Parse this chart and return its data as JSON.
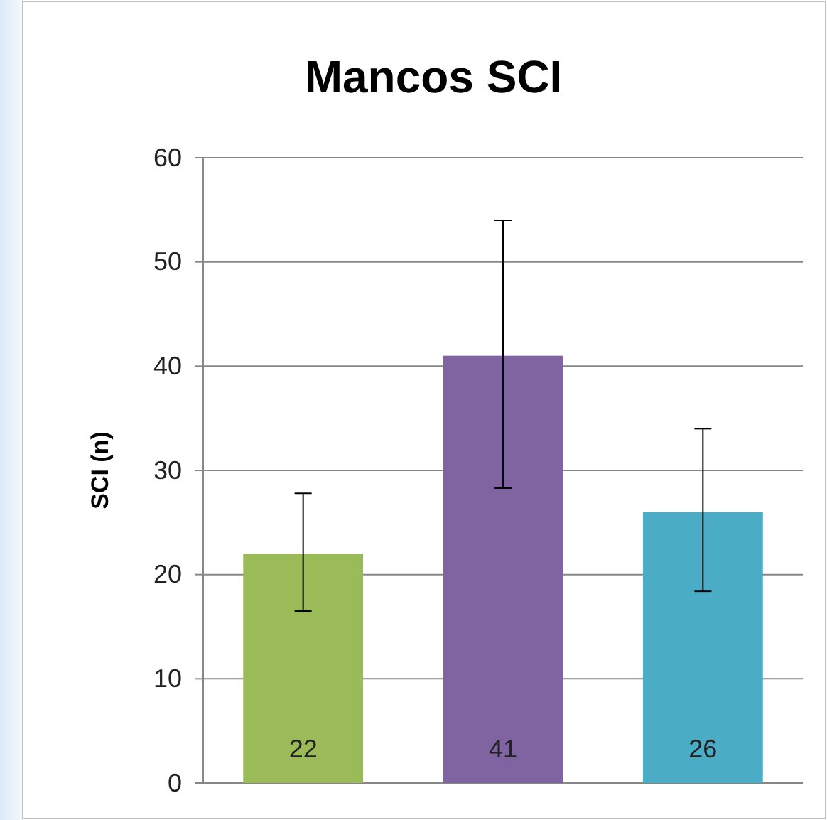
{
  "chart_data": {
    "type": "bar",
    "title": "Mancos SCI",
    "ylabel": "SCI (n)",
    "categories": [
      null,
      null,
      null
    ],
    "values": [
      22,
      41,
      26
    ],
    "colors": [
      "#9bbb59",
      "#8064a2",
      "#4bacc6"
    ],
    "errors": [
      [
        16.5,
        27.8
      ],
      [
        28.3,
        54
      ],
      [
        18.4,
        34
      ]
    ],
    "ylim": [
      0,
      60
    ],
    "yticks": [
      0,
      10,
      20,
      30,
      40,
      50,
      60
    ],
    "grid": "y",
    "data_labels": true
  }
}
